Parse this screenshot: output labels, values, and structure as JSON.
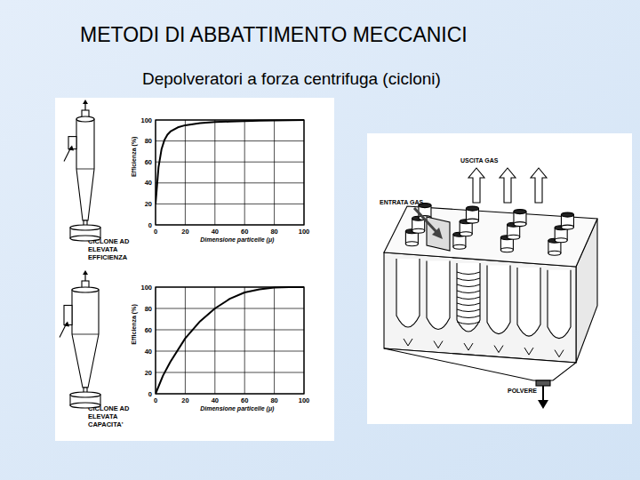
{
  "slide": {
    "title": "METODI DI ABBATTIMENTO MECCANICI",
    "subtitle": "Depolveratori a forza centrifuga (cicloni)"
  },
  "chart_data": [
    {
      "type": "line",
      "title": "CICLONE AD ELEVATA EFFICIENZA",
      "x_label": "Dimensione particelle (μ)",
      "y_label": "Efficienza (%)",
      "x": [
        0,
        2,
        4,
        6,
        8,
        10,
        15,
        20,
        30,
        40,
        50,
        60,
        70,
        80,
        90,
        100
      ],
      "values": [
        20,
        55,
        72,
        81,
        86,
        89,
        93,
        95,
        97,
        98,
        98.5,
        99,
        99.3,
        99.6,
        99.8,
        100
      ],
      "color": "#000000",
      "xlim": [
        0,
        100
      ],
      "ylim": [
        0,
        100
      ],
      "xticks": [
        0,
        20,
        40,
        60,
        80,
        100
      ],
      "yticks": [
        0,
        20,
        40,
        60,
        80,
        100
      ],
      "grid": true
    },
    {
      "type": "line",
      "title": "CICLONE AD ELEVATA CAPACITA'",
      "x_label": "Dimensione particelle (μ)",
      "y_label": "Efficienza (%)",
      "x": [
        0,
        5,
        10,
        20,
        30,
        40,
        50,
        60,
        70,
        80,
        90,
        100
      ],
      "values": [
        0,
        17,
        30,
        52,
        68,
        80,
        89,
        95,
        98,
        99.5,
        100,
        100
      ],
      "color": "#000000",
      "xlim": [
        0,
        100
      ],
      "ylim": [
        0,
        100
      ],
      "xticks": [
        0,
        20,
        40,
        60,
        80,
        100
      ],
      "yticks": [
        0,
        20,
        40,
        60,
        80,
        100
      ],
      "grid": true
    }
  ],
  "diagram": {
    "outlet": "USCITA GAS",
    "inlet": "ENTRATA GAS",
    "dust": "POLVERE"
  }
}
